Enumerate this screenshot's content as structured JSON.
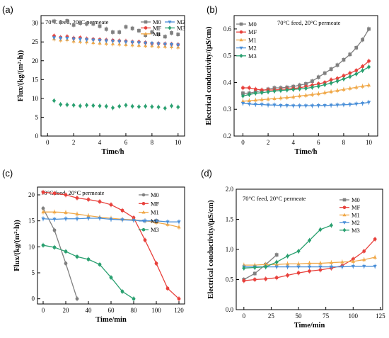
{
  "chart_data": [
    {
      "panel": "(a)",
      "type": "scatter",
      "annotation": "70°C feed, 20°C permeate",
      "xlabel": "Time/h",
      "ylabel": "Flux/(kg/(m²·h))",
      "xlim": [
        -0.5,
        10.5
      ],
      "ylim": [
        0,
        32
      ],
      "xticks": [
        0,
        2,
        4,
        6,
        8,
        10
      ],
      "yticks": [
        0,
        5,
        10,
        15,
        20,
        25,
        30
      ],
      "legend": "top-right",
      "legend_columns": 2,
      "series": [
        {
          "name": "M0",
          "color": "#808080",
          "marker": "square",
          "line": false,
          "x": [
            0.5,
            1,
            1.5,
            2,
            2.5,
            3,
            3.5,
            4,
            4.5,
            5,
            5.5,
            6,
            6.5,
            7,
            7.5,
            8,
            8.5,
            9,
            9.5,
            10
          ],
          "y": [
            30.5,
            30.2,
            30.6,
            29.5,
            30.0,
            29.8,
            29.8,
            29.2,
            28.4,
            27.6,
            27.6,
            29.0,
            28.6,
            28.0,
            26.8,
            27.6,
            27.0,
            26.4,
            27.4,
            27.0
          ]
        },
        {
          "name": "MF",
          "color": "#e8413c",
          "marker": "circle",
          "line": false,
          "x": [
            0.5,
            1,
            1.5,
            2,
            2.5,
            3,
            3.5,
            4,
            4.5,
            5,
            5.5,
            6,
            6.5,
            7,
            7.5,
            8,
            8.5,
            9,
            9.5,
            10
          ],
          "y": [
            26.6,
            26.2,
            26.4,
            26.0,
            26.1,
            25.8,
            25.7,
            25.6,
            25.5,
            25.4,
            25.3,
            25.2,
            25.0,
            25.0,
            24.8,
            24.6,
            24.6,
            24.5,
            24.4,
            24.3
          ]
        },
        {
          "name": "M1",
          "color": "#f0a848",
          "marker": "triangle-up",
          "line": false,
          "x": [
            0.5,
            1,
            1.5,
            2,
            2.5,
            3,
            3.5,
            4,
            4.5,
            5,
            5.5,
            6,
            6.5,
            7,
            7.5,
            8,
            8.5,
            9,
            9.5,
            10
          ],
          "y": [
            25.8,
            25.5,
            25.6,
            25.2,
            25.1,
            25.0,
            24.8,
            24.7,
            24.6,
            24.5,
            24.4,
            24.3,
            24.2,
            24.1,
            24.0,
            24.0,
            23.8,
            23.8,
            23.7,
            23.6
          ]
        },
        {
          "name": "M2",
          "color": "#4a8fd8",
          "marker": "triangle-down",
          "line": false,
          "x": [
            0.5,
            1,
            1.5,
            2,
            2.5,
            3,
            3.5,
            4,
            4.5,
            5,
            5.5,
            6,
            6.5,
            7,
            7.5,
            8,
            8.5,
            9,
            9.5,
            10
          ],
          "y": [
            26.1,
            26.0,
            26.0,
            25.8,
            25.7,
            25.6,
            25.5,
            25.4,
            25.3,
            25.2,
            25.1,
            25.0,
            24.9,
            24.8,
            24.7,
            24.6,
            24.5,
            24.4,
            24.3,
            24.2
          ]
        },
        {
          "name": "M3",
          "color": "#2aa070",
          "marker": "diamond",
          "line": false,
          "x": [
            0.5,
            1,
            1.5,
            2,
            2.5,
            3,
            3.5,
            4,
            4.5,
            5,
            5.5,
            6,
            6.5,
            7,
            7.5,
            8,
            8.5,
            9,
            9.5,
            10
          ],
          "y": [
            9.4,
            8.4,
            8.3,
            8.2,
            8.0,
            8.2,
            8.1,
            8.0,
            7.9,
            7.5,
            7.9,
            8.2,
            7.9,
            7.8,
            7.9,
            7.8,
            7.7,
            7.4,
            8.0,
            7.7
          ]
        }
      ]
    },
    {
      "panel": "(b)",
      "type": "line",
      "annotation": "70°C feed, 20°C permeate",
      "xlabel": "Time/h",
      "ylabel": "Electrical conductivity/(μS/cm)",
      "xlim": [
        -0.7,
        10.7
      ],
      "ylim": [
        0.2,
        0.65
      ],
      "xticks": [
        0,
        2,
        4,
        6,
        8,
        10
      ],
      "yticks": [
        0.2,
        0.3,
        0.4,
        0.5,
        0.6
      ],
      "legend": "top-left",
      "legend_columns": 1,
      "series": [
        {
          "name": "M0",
          "color": "#808080",
          "marker": "square",
          "line": true,
          "x": [
            0,
            0.5,
            1,
            1.5,
            2,
            2.5,
            3,
            3.5,
            4,
            4.5,
            5,
            5.5,
            6,
            6.5,
            7,
            7.5,
            8,
            8.5,
            9,
            9.5,
            10
          ],
          "y": [
            0.36,
            0.36,
            0.365,
            0.37,
            0.375,
            0.38,
            0.38,
            0.382,
            0.385,
            0.39,
            0.395,
            0.405,
            0.42,
            0.435,
            0.45,
            0.465,
            0.485,
            0.505,
            0.53,
            0.56,
            0.6
          ]
        },
        {
          "name": "MF",
          "color": "#e8413c",
          "marker": "circle",
          "line": true,
          "x": [
            0,
            0.5,
            1,
            1.5,
            2,
            2.5,
            3,
            3.5,
            4,
            4.5,
            5,
            5.5,
            6,
            6.5,
            7,
            7.5,
            8,
            8.5,
            9,
            9.5,
            10
          ],
          "y": [
            0.38,
            0.38,
            0.375,
            0.372,
            0.372,
            0.372,
            0.374,
            0.376,
            0.378,
            0.38,
            0.385,
            0.39,
            0.395,
            0.4,
            0.41,
            0.415,
            0.425,
            0.435,
            0.445,
            0.46,
            0.48
          ]
        },
        {
          "name": "M1",
          "color": "#f0a848",
          "marker": "triangle-up",
          "line": true,
          "x": [
            0,
            0.5,
            1,
            1.5,
            2,
            2.5,
            3,
            3.5,
            4,
            4.5,
            5,
            5.5,
            6,
            6.5,
            7,
            7.5,
            8,
            8.5,
            9,
            9.5,
            10
          ],
          "y": [
            0.33,
            0.332,
            0.334,
            0.336,
            0.338,
            0.34,
            0.342,
            0.344,
            0.346,
            0.35,
            0.352,
            0.355,
            0.358,
            0.362,
            0.366,
            0.37,
            0.374,
            0.378,
            0.382,
            0.386,
            0.39
          ]
        },
        {
          "name": "M2",
          "color": "#4a8fd8",
          "marker": "triangle-down",
          "line": true,
          "x": [
            0,
            0.5,
            1,
            1.5,
            2,
            2.5,
            3,
            3.5,
            4,
            4.5,
            5,
            5.5,
            6,
            6.5,
            7,
            7.5,
            8,
            8.5,
            9,
            9.5,
            10
          ],
          "y": [
            0.322,
            0.32,
            0.318,
            0.318,
            0.316,
            0.316,
            0.314,
            0.314,
            0.313,
            0.313,
            0.313,
            0.313,
            0.314,
            0.314,
            0.315,
            0.316,
            0.317,
            0.318,
            0.32,
            0.322,
            0.326
          ]
        },
        {
          "name": "M3",
          "color": "#2aa070",
          "marker": "diamond",
          "line": true,
          "x": [
            0,
            0.5,
            1,
            1.5,
            2,
            2.5,
            3,
            3.5,
            4,
            4.5,
            5,
            5.5,
            6,
            6.5,
            7,
            7.5,
            8,
            8.5,
            9,
            9.5,
            10
          ],
          "y": [
            0.35,
            0.355,
            0.36,
            0.362,
            0.365,
            0.368,
            0.37,
            0.372,
            0.374,
            0.376,
            0.378,
            0.382,
            0.386,
            0.392,
            0.398,
            0.405,
            0.413,
            0.422,
            0.432,
            0.445,
            0.458
          ]
        }
      ]
    },
    {
      "panel": "(c)",
      "type": "line",
      "annotation": "70°C feed, 20°C permeate",
      "xlabel": "Time/min",
      "ylabel": "Flux/(kg/(m²·h))",
      "xlim": [
        -5,
        125
      ],
      "ylim": [
        -1,
        21.5
      ],
      "xticks": [
        0,
        20,
        40,
        60,
        80,
        100,
        120
      ],
      "yticks": [
        0,
        5,
        10,
        15,
        20
      ],
      "legend": "top-right",
      "legend_columns": 1,
      "series": [
        {
          "name": "M0",
          "color": "#808080",
          "marker": "circle",
          "line": true,
          "x": [
            0,
            10,
            20,
            30
          ],
          "y": [
            17.4,
            13.2,
            6.8,
            0
          ]
        },
        {
          "name": "MF",
          "color": "#e8413c",
          "marker": "circle",
          "line": true,
          "x": [
            0,
            10,
            20,
            30,
            40,
            50,
            60,
            70,
            80,
            90,
            100,
            110,
            120
          ],
          "y": [
            20.5,
            20.3,
            20.0,
            19.4,
            19.1,
            18.7,
            18.1,
            17.0,
            15.6,
            11.3,
            6.8,
            2.0,
            0
          ]
        },
        {
          "name": "M1",
          "color": "#f0a848",
          "marker": "triangle-up",
          "line": true,
          "x": [
            0,
            10,
            20,
            30,
            40,
            50,
            60,
            70,
            80,
            90,
            100,
            110,
            120
          ],
          "y": [
            16.7,
            16.7,
            16.6,
            16.3,
            16.0,
            15.7,
            15.5,
            15.3,
            15.2,
            15.0,
            14.7,
            14.3,
            13.8
          ]
        },
        {
          "name": "M2",
          "color": "#4a8fd8",
          "marker": "triangle-down",
          "line": true,
          "x": [
            0,
            10,
            20,
            30,
            40,
            50,
            60,
            70,
            80,
            90,
            100,
            110,
            120
          ],
          "y": [
            15.4,
            15.3,
            15.4,
            15.4,
            15.5,
            15.5,
            15.3,
            15.2,
            15.1,
            15.0,
            15.0,
            14.8,
            14.8
          ]
        },
        {
          "name": "M3",
          "color": "#2aa070",
          "marker": "circle",
          "line": true,
          "x": [
            0,
            10,
            20,
            30,
            40,
            50,
            60,
            70,
            80
          ],
          "y": [
            10.3,
            9.9,
            9.1,
            8.1,
            7.6,
            6.6,
            4.1,
            1.4,
            0
          ]
        }
      ]
    },
    {
      "panel": "(d)",
      "type": "line",
      "annotation": "70°C feed, 20°C permeate",
      "xlabel": "Time/min",
      "ylabel": "Electrical conductivity/(μS/cm)",
      "xlim": [
        -7,
        127
      ],
      "ylim": [
        0,
        2.0
      ],
      "xticks": [
        0,
        25,
        50,
        75,
        100,
        125
      ],
      "yticks": [
        0.0,
        0.5,
        1.0,
        1.5,
        2.0
      ],
      "legend": "top-right",
      "legend_columns": 1,
      "series": [
        {
          "name": "M0",
          "color": "#808080",
          "marker": "square",
          "line": true,
          "x": [
            0,
            10,
            20,
            30
          ],
          "y": [
            0.5,
            0.6,
            0.75,
            0.91
          ]
        },
        {
          "name": "MF",
          "color": "#e8413c",
          "marker": "circle",
          "line": true,
          "x": [
            0,
            10,
            20,
            30,
            40,
            50,
            60,
            70,
            80,
            90,
            100,
            110,
            120
          ],
          "y": [
            0.48,
            0.5,
            0.51,
            0.53,
            0.57,
            0.61,
            0.64,
            0.66,
            0.69,
            0.73,
            0.84,
            0.97,
            1.17
          ]
        },
        {
          "name": "M1",
          "color": "#f0a848",
          "marker": "triangle-up",
          "line": true,
          "x": [
            0,
            10,
            20,
            30,
            40,
            50,
            60,
            70,
            80,
            90,
            100,
            110,
            120
          ],
          "y": [
            0.74,
            0.74,
            0.75,
            0.75,
            0.76,
            0.76,
            0.77,
            0.77,
            0.78,
            0.79,
            0.8,
            0.83,
            0.87
          ]
        },
        {
          "name": "M2",
          "color": "#4a8fd8",
          "marker": "triangle-down",
          "line": true,
          "x": [
            0,
            10,
            20,
            30,
            40,
            50,
            60,
            70,
            80,
            90,
            100,
            110,
            120
          ],
          "y": [
            0.71,
            0.71,
            0.71,
            0.71,
            0.71,
            0.71,
            0.71,
            0.71,
            0.71,
            0.71,
            0.72,
            0.72,
            0.72
          ]
        },
        {
          "name": "M3",
          "color": "#2aa070",
          "marker": "diamond",
          "line": true,
          "x": [
            0,
            10,
            20,
            30,
            40,
            50,
            60,
            70,
            80
          ],
          "y": [
            0.69,
            0.7,
            0.71,
            0.79,
            0.89,
            0.97,
            1.15,
            1.33,
            1.4
          ]
        }
      ]
    }
  ]
}
